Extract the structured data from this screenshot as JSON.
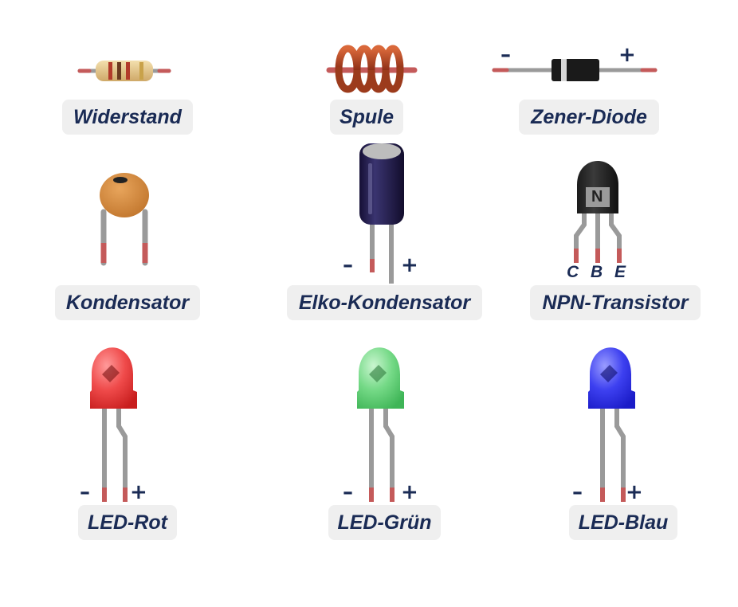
{
  "components": [
    {
      "id": "resistor",
      "label": "Widerstand"
    },
    {
      "id": "coil",
      "label": "Spule"
    },
    {
      "id": "zener",
      "label": "Zener-Diode",
      "polarity": {
        "minus": "–",
        "plus": "+"
      }
    },
    {
      "id": "capacitor",
      "label": "Kondensator"
    },
    {
      "id": "elko",
      "label": "Elko-Kondensator",
      "polarity": {
        "minus": "–",
        "plus": "+"
      }
    },
    {
      "id": "npn",
      "label": "NPN-Transistor",
      "body_text": "N",
      "pins": [
        "C",
        "B",
        "E"
      ]
    },
    {
      "id": "led-red",
      "label": "LED-Rot",
      "color": "#e53030",
      "polarity": {
        "minus": "–",
        "plus": "+"
      }
    },
    {
      "id": "led-green",
      "label": "LED-Grün",
      "color": "#5ccf73",
      "polarity": {
        "minus": "–",
        "plus": "+"
      }
    },
    {
      "id": "led-blue",
      "label": "LED-Blau",
      "color": "#2a2ee8",
      "polarity": {
        "minus": "–",
        "plus": "+"
      }
    }
  ],
  "colors": {
    "label_text": "#1a2b55",
    "label_bg": "#efefef",
    "lead": "#9a9a9a",
    "lead_tip": "#c45a5a"
  }
}
